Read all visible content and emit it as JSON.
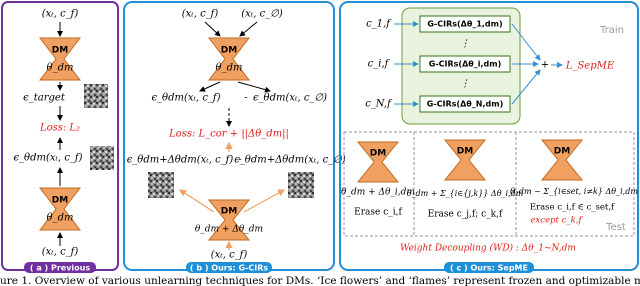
{
  "panel_a": {
    "input_top": "(xₜ, c_f)",
    "dm_top": "DM",
    "theta_top": "θ_dm",
    "eps_target": "ϵ_target",
    "loss": "Loss: L₂",
    "eps_pred": "ϵ_θdm(xₜ, c_f)",
    "dm_bottom": "DM",
    "theta_bottom": "θ_dm",
    "input_bottom": "(xₜ, c_f)",
    "label": "( a ) Previous"
  },
  "panel_b": {
    "input_f": "(xₜ, c_f)",
    "input_null": "(xₜ, c_∅)",
    "dm_top": "DM",
    "theta_top": "θ_dm",
    "eps_f": "ϵ_θdm(xₜ, c_f)",
    "minus_top": "-",
    "eps_null": "ϵ_θdm(xₜ, c_∅)",
    "loss": "Loss: L_cor + ||Δθ_dm||",
    "eps2_f": "ϵ_θdm+Δθdm(xₜ, c_f)",
    "minus_bottom": "-",
    "eps2_null": "ϵ_θdm+Δθdm(xₜ, c_∅)",
    "dm_bottom": "DM",
    "theta_bottom": "θ_dm + Δθ_dm",
    "input_bottom": "(xₜ, c_f)",
    "label": "( b ) Ours: G-CIRs"
  },
  "panel_c": {
    "c_1": "c_1,f",
    "c_i": "c_i,f",
    "c_N": "c_N,f",
    "gcir_1": "G-CIRs(Δθ_1,dm)",
    "gcir_i": "G-CIRs(Δθ_i,dm)",
    "gcir_N": "G-CIRs(Δθ_N,dm)",
    "dots_1": "⋮",
    "dots_2": "⋮",
    "train": "Train",
    "plus": "+",
    "loss": "L_SepME",
    "test": "Test",
    "sub1": {
      "dm": "DM",
      "theta": "θ_dm + Δθ_i,dm",
      "erase": "Erase c_i,f"
    },
    "sub2": {
      "dm": "DM",
      "theta": "θ_dm + Σ_{i∈{j,k}} Δθ_i,dm",
      "erase": "Erase c_j,f; c_k,f"
    },
    "sub3": {
      "dm": "DM",
      "theta": "θ_dm − Σ_{i∈set, i≠k} Δθ_i,dm",
      "erase": "Erase c_i,f ∈ c_set,f",
      "except": "except c_k,f"
    },
    "wd": "Weight Decoupling (WD) : Δθ_1~N,dm",
    "label": "( c ) Ours: SepME"
  },
  "caption": "ure 1.  Overview of various unlearning techniques for DMs. ‘Ice flowers’ and ‘flames’ represent frozen and optimizable model we"
}
